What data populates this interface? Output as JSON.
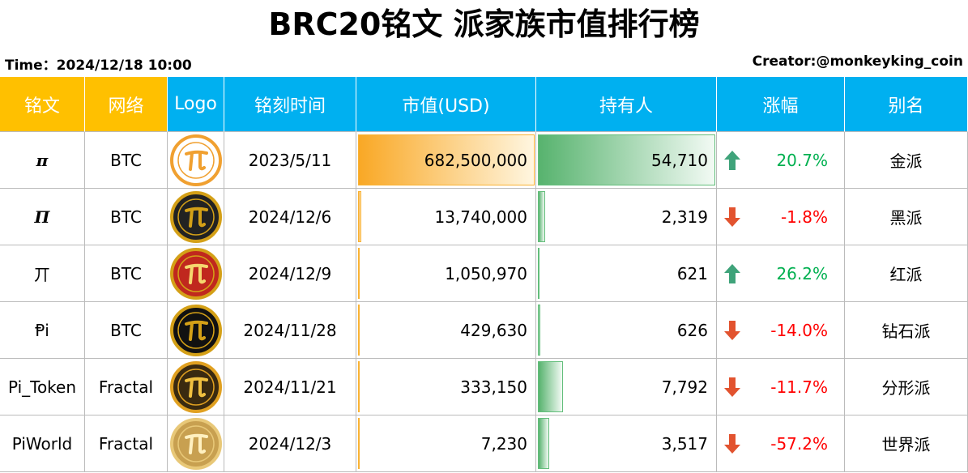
{
  "title": "BRC20铭文 派家族市值排行榜",
  "time": "Time：2024/12/18 10:00",
  "creator": "Creator:@monkeyking_coin",
  "table": {
    "header": [
      "铭文",
      "网络",
      "Logo",
      "铭刻时间",
      "市值(USD)",
      "持有人",
      "涨幅",
      "别名"
    ],
    "rows": [
      {
        "name": "π",
        "network": "BTC",
        "date": "2023/5/11",
        "market_cap": {
          "value": 682500000,
          "label": "682,500,000"
        },
        "holders": {
          "value": 54710,
          "label": "54,710"
        },
        "change": {
          "value": 20.7,
          "label": "20.7%"
        },
        "alias": "金派"
      },
      {
        "name": "Π",
        "network": "BTC",
        "date": "2024/12/6",
        "market_cap": {
          "value": 13740000,
          "label": "13,740,000"
        },
        "holders": {
          "value": 2319,
          "label": "2,319"
        },
        "change": {
          "value": -1.8,
          "label": "-1.8%"
        },
        "alias": "黑派"
      },
      {
        "name": "丌",
        "network": "BTC",
        "date": "2024/12/9",
        "market_cap": {
          "value": 1050970,
          "label": "1,050,970"
        },
        "holders": {
          "value": 621,
          "label": "621"
        },
        "change": {
          "value": 26.2,
          "label": "26.2%"
        },
        "alias": "红派"
      },
      {
        "name": "Ᵽi",
        "network": "BTC",
        "date": "2024/11/28",
        "market_cap": {
          "value": 429630,
          "label": "429,630"
        },
        "holders": {
          "value": 626,
          "label": "626"
        },
        "change": {
          "value": -14.0,
          "label": "-14.0%"
        },
        "alias": "钻石派"
      },
      {
        "name": "Pi_Token",
        "network": "Fractal",
        "date": "2024/11/21",
        "market_cap": {
          "value": 333150,
          "label": "333,150"
        },
        "holders": {
          "value": 7792,
          "label": "7,792"
        },
        "change": {
          "value": -11.7,
          "label": "-11.7%"
        },
        "alias": "分形派"
      },
      {
        "name": "PiWorld",
        "network": "Fractal",
        "date": "2024/12/3",
        "market_cap": {
          "value": 7230,
          "label": "7,230"
        },
        "holders": {
          "value": 3517,
          "label": "3,517"
        },
        "change": {
          "value": -57.2,
          "label": "-57.2%"
        },
        "alias": "世界派"
      }
    ]
  }
}
